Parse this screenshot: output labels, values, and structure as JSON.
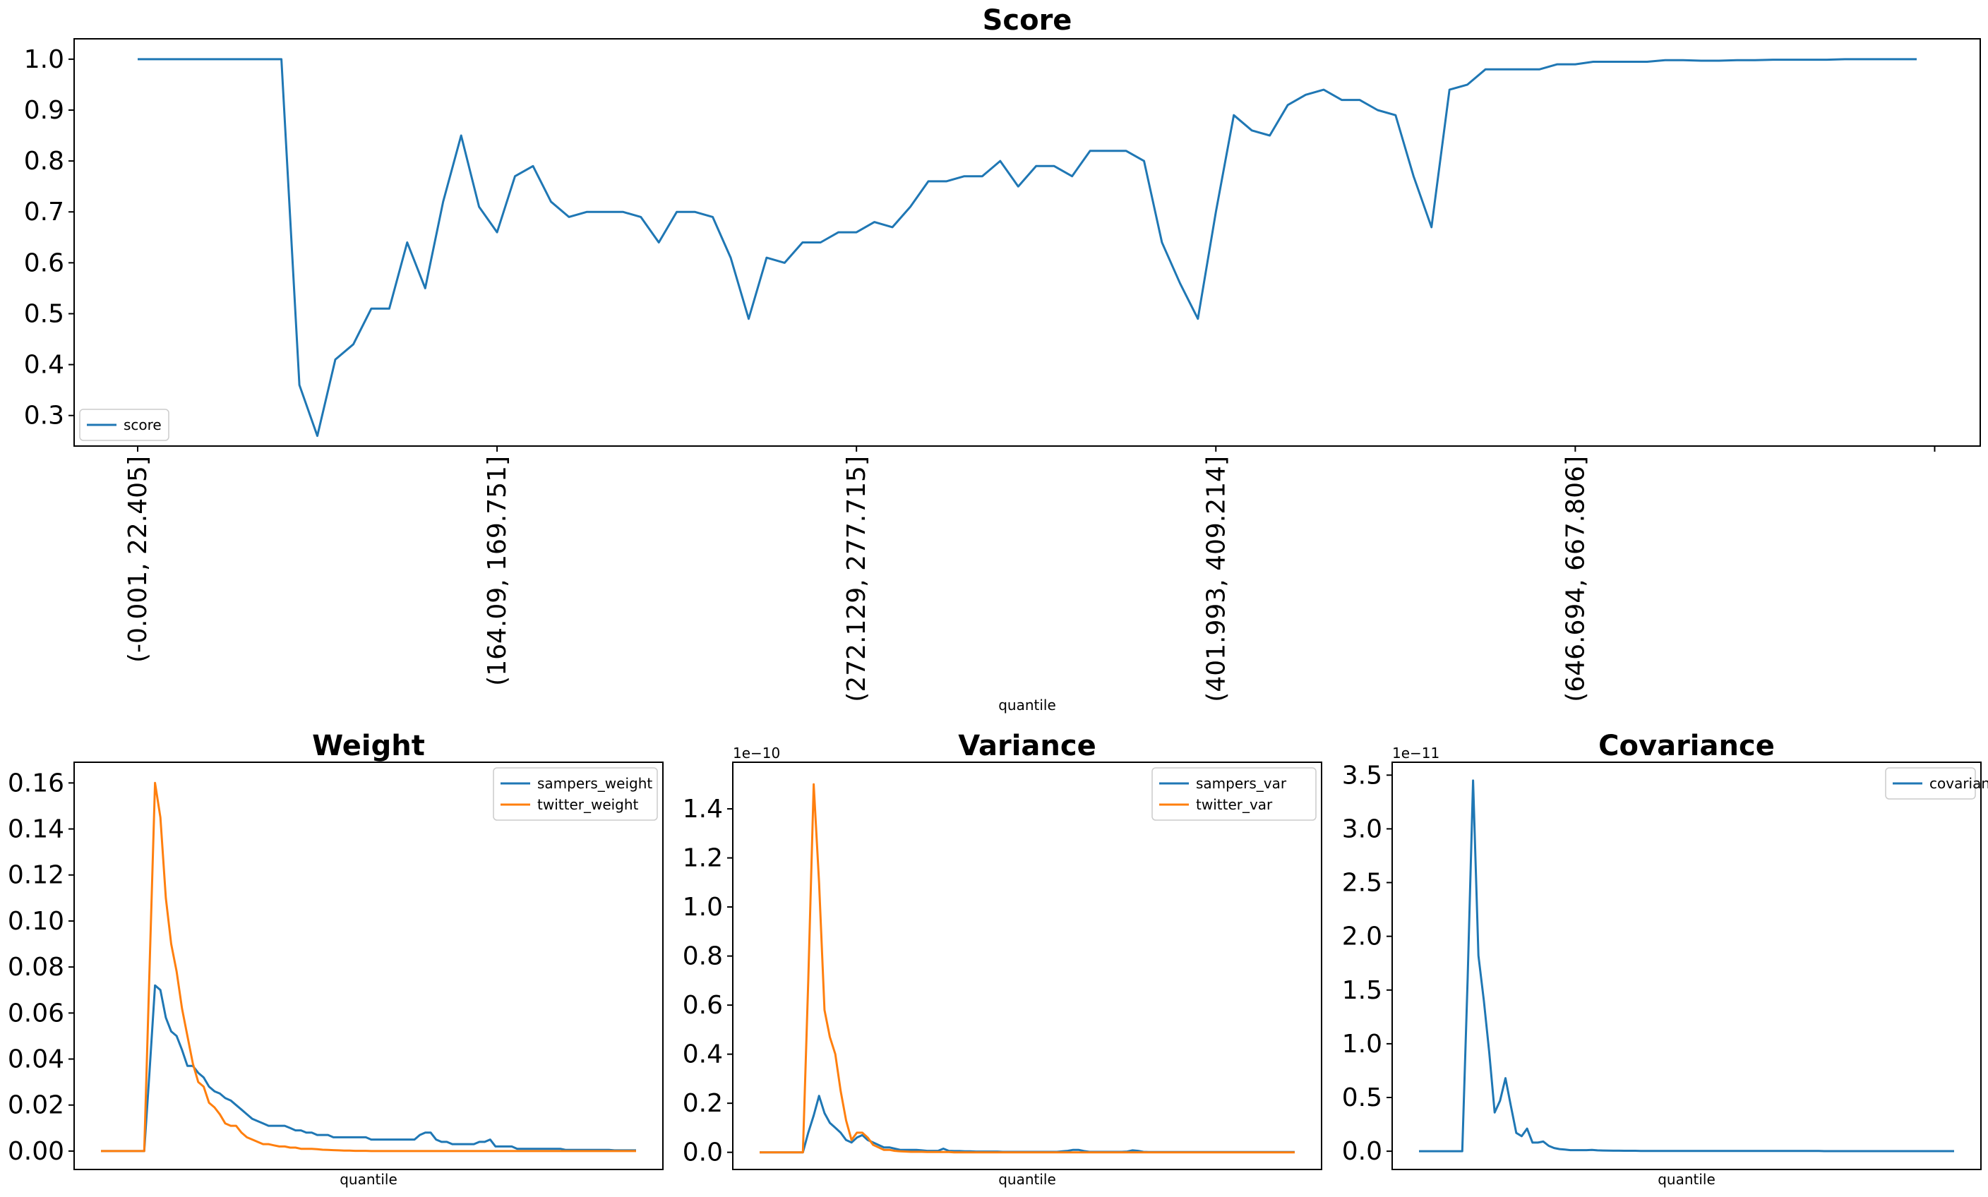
{
  "chart_data": [
    {
      "type": "line",
      "title": "Score",
      "xlabel": "quantile",
      "ylabel": "",
      "ylim": [
        0.24,
        1.04
      ],
      "yticks": [
        "0.3",
        "0.4",
        "0.5",
        "0.6",
        "0.7",
        "0.8",
        "0.9",
        "1.0"
      ],
      "x_tick_labels": [
        "(-0.001, 22.405]",
        "(164.09, 169.751]",
        "(272.129, 277.715]",
        "(401.993, 409.214]",
        "(646.694, 667.806]",
        ""
      ],
      "legend_position": "lower left",
      "grid": false,
      "series": [
        {
          "name": "score",
          "color": "#1f77b4",
          "values": [
            1.0,
            1.0,
            1.0,
            1.0,
            1.0,
            1.0,
            1.0,
            1.0,
            1.0,
            0.36,
            0.26,
            0.41,
            0.44,
            0.51,
            0.51,
            0.64,
            0.55,
            0.72,
            0.85,
            0.71,
            0.66,
            0.77,
            0.79,
            0.72,
            0.69,
            0.7,
            0.7,
            0.7,
            0.69,
            0.64,
            0.7,
            0.7,
            0.69,
            0.61,
            0.49,
            0.61,
            0.6,
            0.64,
            0.64,
            0.66,
            0.66,
            0.68,
            0.67,
            0.71,
            0.76,
            0.76,
            0.77,
            0.77,
            0.8,
            0.75,
            0.79,
            0.79,
            0.77,
            0.82,
            0.82,
            0.82,
            0.8,
            0.64,
            0.56,
            0.49,
            0.7,
            0.89,
            0.86,
            0.85,
            0.91,
            0.93,
            0.94,
            0.92,
            0.92,
            0.9,
            0.89,
            0.77,
            0.67,
            0.94,
            0.95,
            0.98,
            0.98,
            0.98,
            0.98,
            0.99,
            0.99,
            0.995,
            0.995,
            0.995,
            0.995,
            0.998,
            0.998,
            0.997,
            0.997,
            0.998,
            0.998,
            0.999,
            0.999,
            0.999,
            0.999,
            1.0,
            1.0,
            1.0,
            1.0,
            1.0
          ]
        }
      ]
    },
    {
      "type": "line",
      "title": "Weight",
      "xlabel": "quantile",
      "ylabel": "",
      "ylim": [
        -0.008,
        0.169
      ],
      "yticks": [
        "0.00",
        "0.02",
        "0.04",
        "0.06",
        "0.08",
        "0.10",
        "0.12",
        "0.14",
        "0.16"
      ],
      "legend_position": "upper right",
      "grid": false,
      "series": [
        {
          "name": "sampers_weight",
          "color": "#1f77b4",
          "values": [
            0,
            0,
            0,
            0,
            0,
            0,
            0,
            0,
            0,
            0.035,
            0.072,
            0.07,
            0.058,
            0.052,
            0.05,
            0.044,
            0.037,
            0.037,
            0.034,
            0.032,
            0.028,
            0.026,
            0.025,
            0.023,
            0.022,
            0.02,
            0.018,
            0.016,
            0.014,
            0.013,
            0.012,
            0.011,
            0.011,
            0.011,
            0.011,
            0.01,
            0.009,
            0.009,
            0.008,
            0.008,
            0.007,
            0.007,
            0.007,
            0.006,
            0.006,
            0.006,
            0.006,
            0.006,
            0.006,
            0.006,
            0.005,
            0.005,
            0.005,
            0.005,
            0.005,
            0.005,
            0.005,
            0.005,
            0.005,
            0.007,
            0.008,
            0.008,
            0.005,
            0.004,
            0.004,
            0.003,
            0.003,
            0.003,
            0.003,
            0.003,
            0.004,
            0.004,
            0.005,
            0.002,
            0.002,
            0.002,
            0.002,
            0.001,
            0.001,
            0.001,
            0.001,
            0.001,
            0.001,
            0.001,
            0.001,
            0.001,
            0.0005,
            0.0005,
            0.0005,
            0.0005,
            0.0005,
            0.0005,
            0.0005,
            0.0005,
            0.0005,
            0.0003,
            0.0003,
            0.0003,
            0.0003,
            0.0003
          ]
        },
        {
          "name": "twitter_weight",
          "color": "#ff7f0e",
          "values": [
            0,
            0,
            0,
            0,
            0,
            0,
            0,
            0,
            0,
            0.08,
            0.16,
            0.145,
            0.11,
            0.09,
            0.078,
            0.062,
            0.05,
            0.038,
            0.03,
            0.028,
            0.021,
            0.019,
            0.016,
            0.012,
            0.011,
            0.011,
            0.008,
            0.006,
            0.005,
            0.004,
            0.003,
            0.003,
            0.0025,
            0.002,
            0.002,
            0.0015,
            0.0015,
            0.001,
            0.001,
            0.001,
            0.0008,
            0.0006,
            0.0005,
            0.0004,
            0.0003,
            0.0002,
            0.0002,
            0.0001,
            0.0001,
            0.0001,
            0,
            0,
            0,
            0,
            0,
            0,
            0,
            0,
            0,
            0,
            0,
            0,
            0,
            0,
            0,
            0,
            0,
            0,
            0,
            0,
            0,
            0,
            0,
            0,
            0,
            0,
            0,
            0,
            0,
            0,
            0,
            0,
            0,
            0,
            0,
            0,
            0,
            0,
            0,
            0,
            0,
            0,
            0,
            0,
            0,
            0,
            0,
            0,
            0,
            0
          ]
        }
      ]
    },
    {
      "type": "line",
      "title": "Variance",
      "xlabel": "quantile",
      "ylabel": "",
      "y_scale_label": "1e−10",
      "ylim": [
        -0.07,
        1.59
      ],
      "yticks": [
        "0.0",
        "0.2",
        "0.4",
        "0.6",
        "0.8",
        "1.0",
        "1.2",
        "1.4"
      ],
      "legend_position": "upper right",
      "grid": false,
      "series": [
        {
          "name": "sampers_var",
          "color": "#1f77b4",
          "values": [
            0,
            0,
            0,
            0,
            0,
            0,
            0,
            0,
            0,
            0.08,
            0.15,
            0.23,
            0.16,
            0.12,
            0.1,
            0.08,
            0.05,
            0.04,
            0.06,
            0.07,
            0.05,
            0.04,
            0.03,
            0.02,
            0.02,
            0.015,
            0.01,
            0.01,
            0.01,
            0.01,
            0.008,
            0.006,
            0.006,
            0.006,
            0.015,
            0.006,
            0.005,
            0.005,
            0.004,
            0.004,
            0.003,
            0.003,
            0.003,
            0.003,
            0.003,
            0.002,
            0.002,
            0.002,
            0.002,
            0.002,
            0.002,
            0.002,
            0.002,
            0.002,
            0.002,
            0.002,
            0.004,
            0.006,
            0.01,
            0.01,
            0.005,
            0.002,
            0.002,
            0.002,
            0.002,
            0.002,
            0.002,
            0.002,
            0.003,
            0.008,
            0.006,
            0.002,
            0.001,
            0.001,
            0.001,
            0.001,
            0.001,
            0.001,
            0.001,
            0.001,
            0.001,
            0.001,
            0.001,
            0.001,
            0.001,
            0.001,
            0.001,
            0.001,
            0.001,
            0.001,
            0.001,
            0.001,
            0.001,
            0.001,
            0.001,
            0.001,
            0.001,
            0.001,
            0.001,
            0.001
          ]
        },
        {
          "name": "twitter_var",
          "color": "#ff7f0e",
          "values": [
            0,
            0,
            0,
            0,
            0,
            0,
            0,
            0,
            0,
            0.7,
            1.5,
            1.1,
            0.58,
            0.47,
            0.4,
            0.25,
            0.13,
            0.05,
            0.08,
            0.08,
            0.06,
            0.03,
            0.02,
            0.01,
            0.01,
            0.006,
            0.004,
            0.003,
            0.002,
            0.002,
            0.002,
            0.001,
            0.001,
            0.001,
            0.001,
            0.001,
            0,
            0,
            0,
            0,
            0,
            0,
            0,
            0,
            0,
            0,
            0,
            0,
            0,
            0,
            0,
            0,
            0,
            0,
            0,
            0,
            0,
            0,
            0,
            0,
            0,
            0,
            0,
            0,
            0,
            0,
            0,
            0,
            0,
            0,
            0,
            0,
            0,
            0,
            0,
            0,
            0,
            0,
            0,
            0,
            0,
            0,
            0,
            0,
            0,
            0,
            0,
            0,
            0,
            0,
            0,
            0,
            0,
            0,
            0,
            0,
            0,
            0,
            0,
            0
          ]
        }
      ]
    },
    {
      "type": "line",
      "title": "Covariance",
      "xlabel": "quantile",
      "ylabel": "",
      "y_scale_label": "1e−11",
      "ylim": [
        -0.17,
        3.62
      ],
      "yticks": [
        "0.0",
        "0.5",
        "1.0",
        "1.5",
        "2.0",
        "2.5",
        "3.0",
        "3.5"
      ],
      "legend_position": "upper right",
      "grid": false,
      "series": [
        {
          "name": "covariance",
          "color": "#1f77b4",
          "values": [
            0,
            0,
            0,
            0,
            0,
            0,
            0,
            0,
            0,
            1.6,
            3.45,
            1.82,
            1.4,
            0.92,
            0.36,
            0.47,
            0.68,
            0.42,
            0.17,
            0.14,
            0.21,
            0.08,
            0.08,
            0.09,
            0.05,
            0.03,
            0.02,
            0.015,
            0.01,
            0.01,
            0.01,
            0.01,
            0.012,
            0.008,
            0.007,
            0.006,
            0.005,
            0.005,
            0.004,
            0.004,
            0.004,
            0.003,
            0.003,
            0.003,
            0.003,
            0.003,
            0.003,
            0.002,
            0.002,
            0.002,
            0.002,
            0.002,
            0.002,
            0.002,
            0.002,
            0.002,
            0.002,
            0.002,
            0.002,
            0.002,
            0.002,
            0.002,
            0.002,
            0.002,
            0.002,
            0.002,
            0.002,
            0.002,
            0.002,
            0.002,
            0.002,
            0.002,
            0.002,
            0.002,
            0.002,
            0.001,
            0.001,
            0.001,
            0.001,
            0.001,
            0.001,
            0.001,
            0.001,
            0.001,
            0.001,
            0.001,
            0.001,
            0.001,
            0.001,
            0.001,
            0.001,
            0.001,
            0.001,
            0.001,
            0.001,
            0.001,
            0.001,
            0.001,
            0.001,
            0.001
          ]
        }
      ]
    }
  ]
}
